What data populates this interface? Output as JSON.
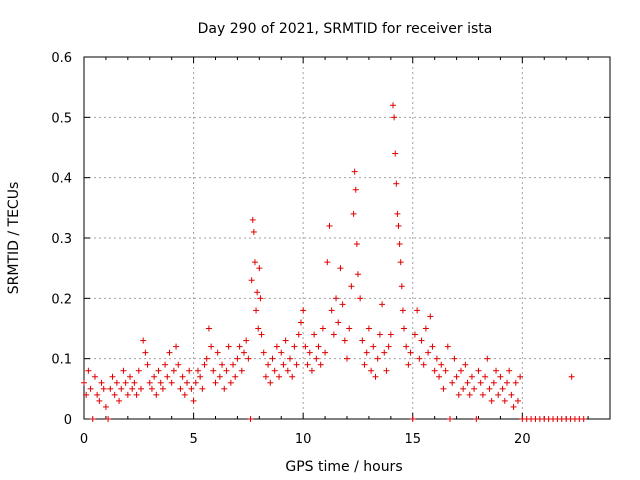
{
  "chart_data": {
    "type": "scatter",
    "title": "Day 290 of 2021, SRMTID for receiver ista",
    "xlabel": "GPS time / hours",
    "ylabel": "SRMTID / TECUs",
    "xlim": [
      0,
      24
    ],
    "ylim": [
      0,
      0.6
    ],
    "xticks": [
      0,
      5,
      10,
      15,
      20
    ],
    "yticks": [
      0,
      0.1,
      0.2,
      0.3,
      0.4,
      0.5,
      0.6
    ],
    "xtick_labels": [
      "0",
      "5",
      "10",
      "15",
      "20"
    ],
    "ytick_labels": [
      "0",
      "0.1",
      "0.2",
      "0.3",
      "0.4",
      "0.5",
      "0.6"
    ],
    "grid": true,
    "marker": "+",
    "series": [
      {
        "name": "SRMTID",
        "color": "#e00000",
        "points": [
          [
            0.0,
            0.06
          ],
          [
            0.1,
            0.04
          ],
          [
            0.2,
            0.08
          ],
          [
            0.3,
            0.05
          ],
          [
            0.4,
            0.0
          ],
          [
            0.5,
            0.07
          ],
          [
            0.6,
            0.04
          ],
          [
            0.7,
            0.03
          ],
          [
            0.8,
            0.06
          ],
          [
            0.9,
            0.05
          ],
          [
            1.0,
            0.02
          ],
          [
            1.1,
            0.0
          ],
          [
            1.2,
            0.05
          ],
          [
            1.3,
            0.07
          ],
          [
            1.4,
            0.04
          ],
          [
            1.5,
            0.06
          ],
          [
            1.6,
            0.03
          ],
          [
            1.7,
            0.05
          ],
          [
            1.8,
            0.08
          ],
          [
            1.9,
            0.06
          ],
          [
            2.0,
            0.04
          ],
          [
            2.1,
            0.07
          ],
          [
            2.2,
            0.05
          ],
          [
            2.3,
            0.06
          ],
          [
            2.4,
            0.04
          ],
          [
            2.5,
            0.08
          ],
          [
            2.6,
            0.05
          ],
          [
            2.7,
            0.13
          ],
          [
            2.8,
            0.11
          ],
          [
            2.9,
            0.09
          ],
          [
            3.0,
            0.06
          ],
          [
            3.1,
            0.05
          ],
          [
            3.2,
            0.07
          ],
          [
            3.3,
            0.04
          ],
          [
            3.4,
            0.08
          ],
          [
            3.5,
            0.06
          ],
          [
            3.6,
            0.05
          ],
          [
            3.7,
            0.09
          ],
          [
            3.8,
            0.07
          ],
          [
            3.9,
            0.11
          ],
          [
            4.0,
            0.06
          ],
          [
            4.1,
            0.08
          ],
          [
            4.2,
            0.12
          ],
          [
            4.3,
            0.09
          ],
          [
            4.4,
            0.05
          ],
          [
            4.5,
            0.07
          ],
          [
            4.6,
            0.04
          ],
          [
            4.7,
            0.06
          ],
          [
            4.8,
            0.08
          ],
          [
            4.9,
            0.05
          ],
          [
            5.0,
            0.03
          ],
          [
            5.1,
            0.06
          ],
          [
            5.2,
            0.08
          ],
          [
            5.3,
            0.07
          ],
          [
            5.4,
            0.05
          ],
          [
            5.5,
            0.09
          ],
          [
            5.6,
            0.1
          ],
          [
            5.7,
            0.15
          ],
          [
            5.8,
            0.12
          ],
          [
            5.9,
            0.08
          ],
          [
            6.0,
            0.06
          ],
          [
            6.1,
            0.11
          ],
          [
            6.2,
            0.07
          ],
          [
            6.3,
            0.09
          ],
          [
            6.4,
            0.05
          ],
          [
            6.5,
            0.08
          ],
          [
            6.6,
            0.12
          ],
          [
            6.7,
            0.06
          ],
          [
            6.8,
            0.09
          ],
          [
            6.9,
            0.07
          ],
          [
            7.0,
            0.1
          ],
          [
            7.1,
            0.12
          ],
          [
            7.2,
            0.08
          ],
          [
            7.3,
            0.11
          ],
          [
            7.4,
            0.13
          ],
          [
            7.5,
            0.1
          ],
          [
            7.6,
            0.0
          ],
          [
            7.65,
            0.23
          ],
          [
            7.7,
            0.33
          ],
          [
            7.75,
            0.31
          ],
          [
            7.8,
            0.26
          ],
          [
            7.85,
            0.18
          ],
          [
            7.9,
            0.21
          ],
          [
            7.95,
            0.15
          ],
          [
            8.0,
            0.25
          ],
          [
            8.05,
            0.2
          ],
          [
            8.1,
            0.14
          ],
          [
            8.2,
            0.11
          ],
          [
            8.3,
            0.07
          ],
          [
            8.4,
            0.09
          ],
          [
            8.5,
            0.06
          ],
          [
            8.6,
            0.1
          ],
          [
            8.7,
            0.08
          ],
          [
            8.8,
            0.12
          ],
          [
            8.9,
            0.07
          ],
          [
            9.0,
            0.11
          ],
          [
            9.1,
            0.09
          ],
          [
            9.2,
            0.13
          ],
          [
            9.3,
            0.08
          ],
          [
            9.4,
            0.1
          ],
          [
            9.5,
            0.07
          ],
          [
            9.6,
            0.12
          ],
          [
            9.7,
            0.09
          ],
          [
            9.8,
            0.14
          ],
          [
            9.9,
            0.16
          ],
          [
            10.0,
            0.18
          ],
          [
            10.1,
            0.12
          ],
          [
            10.2,
            0.09
          ],
          [
            10.3,
            0.11
          ],
          [
            10.4,
            0.08
          ],
          [
            10.5,
            0.14
          ],
          [
            10.6,
            0.1
          ],
          [
            10.7,
            0.12
          ],
          [
            10.8,
            0.09
          ],
          [
            10.9,
            0.15
          ],
          [
            11.0,
            0.11
          ],
          [
            11.1,
            0.26
          ],
          [
            11.2,
            0.32
          ],
          [
            11.3,
            0.18
          ],
          [
            11.4,
            0.14
          ],
          [
            11.5,
            0.2
          ],
          [
            11.6,
            0.16
          ],
          [
            11.7,
            0.25
          ],
          [
            11.8,
            0.19
          ],
          [
            11.9,
            0.13
          ],
          [
            12.0,
            0.1
          ],
          [
            12.1,
            0.15
          ],
          [
            12.2,
            0.22
          ],
          [
            12.3,
            0.34
          ],
          [
            12.35,
            0.41
          ],
          [
            12.4,
            0.38
          ],
          [
            12.45,
            0.29
          ],
          [
            12.5,
            0.24
          ],
          [
            12.6,
            0.2
          ],
          [
            12.7,
            0.13
          ],
          [
            12.8,
            0.09
          ],
          [
            12.9,
            0.11
          ],
          [
            13.0,
            0.15
          ],
          [
            13.1,
            0.08
          ],
          [
            13.2,
            0.12
          ],
          [
            13.3,
            0.07
          ],
          [
            13.4,
            0.1
          ],
          [
            13.5,
            0.14
          ],
          [
            13.6,
            0.19
          ],
          [
            13.7,
            0.11
          ],
          [
            13.8,
            0.08
          ],
          [
            13.9,
            0.12
          ],
          [
            14.0,
            0.14
          ],
          [
            14.1,
            0.52
          ],
          [
            14.15,
            0.5
          ],
          [
            14.2,
            0.44
          ],
          [
            14.25,
            0.39
          ],
          [
            14.3,
            0.34
          ],
          [
            14.35,
            0.32
          ],
          [
            14.4,
            0.29
          ],
          [
            14.45,
            0.26
          ],
          [
            14.5,
            0.22
          ],
          [
            14.55,
            0.18
          ],
          [
            14.6,
            0.15
          ],
          [
            14.7,
            0.12
          ],
          [
            14.8,
            0.09
          ],
          [
            14.9,
            0.11
          ],
          [
            15.0,
            0.0
          ],
          [
            15.1,
            0.14
          ],
          [
            15.2,
            0.18
          ],
          [
            15.3,
            0.1
          ],
          [
            15.4,
            0.13
          ],
          [
            15.5,
            0.09
          ],
          [
            15.6,
            0.15
          ],
          [
            15.7,
            0.11
          ],
          [
            15.8,
            0.17
          ],
          [
            15.9,
            0.12
          ],
          [
            16.0,
            0.08
          ],
          [
            16.1,
            0.1
          ],
          [
            16.2,
            0.07
          ],
          [
            16.3,
            0.09
          ],
          [
            16.4,
            0.05
          ],
          [
            16.5,
            0.08
          ],
          [
            16.6,
            0.12
          ],
          [
            16.7,
            0.0
          ],
          [
            16.8,
            0.06
          ],
          [
            16.9,
            0.1
          ],
          [
            17.0,
            0.07
          ],
          [
            17.1,
            0.04
          ],
          [
            17.2,
            0.08
          ],
          [
            17.3,
            0.05
          ],
          [
            17.4,
            0.09
          ],
          [
            17.5,
            0.06
          ],
          [
            17.6,
            0.04
          ],
          [
            17.7,
            0.07
          ],
          [
            17.8,
            0.05
          ],
          [
            17.9,
            0.0
          ],
          [
            18.0,
            0.08
          ],
          [
            18.1,
            0.06
          ],
          [
            18.2,
            0.04
          ],
          [
            18.3,
            0.07
          ],
          [
            18.4,
            0.1
          ],
          [
            18.5,
            0.05
          ],
          [
            18.6,
            0.03
          ],
          [
            18.7,
            0.06
          ],
          [
            18.8,
            0.08
          ],
          [
            18.9,
            0.04
          ],
          [
            19.0,
            0.07
          ],
          [
            19.1,
            0.05
          ],
          [
            19.2,
            0.03
          ],
          [
            19.3,
            0.06
          ],
          [
            19.4,
            0.08
          ],
          [
            19.5,
            0.04
          ],
          [
            19.6,
            0.02
          ],
          [
            19.7,
            0.06
          ],
          [
            19.8,
            0.03
          ],
          [
            19.9,
            0.07
          ],
          [
            20.0,
            0.0
          ],
          [
            20.2,
            0.0
          ],
          [
            20.4,
            0.0
          ],
          [
            20.6,
            0.0
          ],
          [
            20.8,
            0.0
          ],
          [
            21.0,
            0.0
          ],
          [
            21.2,
            0.0
          ],
          [
            21.4,
            0.0
          ],
          [
            21.6,
            0.0
          ],
          [
            21.8,
            0.0
          ],
          [
            22.0,
            0.0
          ],
          [
            22.2,
            0.0
          ],
          [
            22.25,
            0.07
          ],
          [
            22.4,
            0.0
          ],
          [
            22.6,
            0.0
          ],
          [
            22.8,
            0.0
          ]
        ]
      }
    ]
  }
}
